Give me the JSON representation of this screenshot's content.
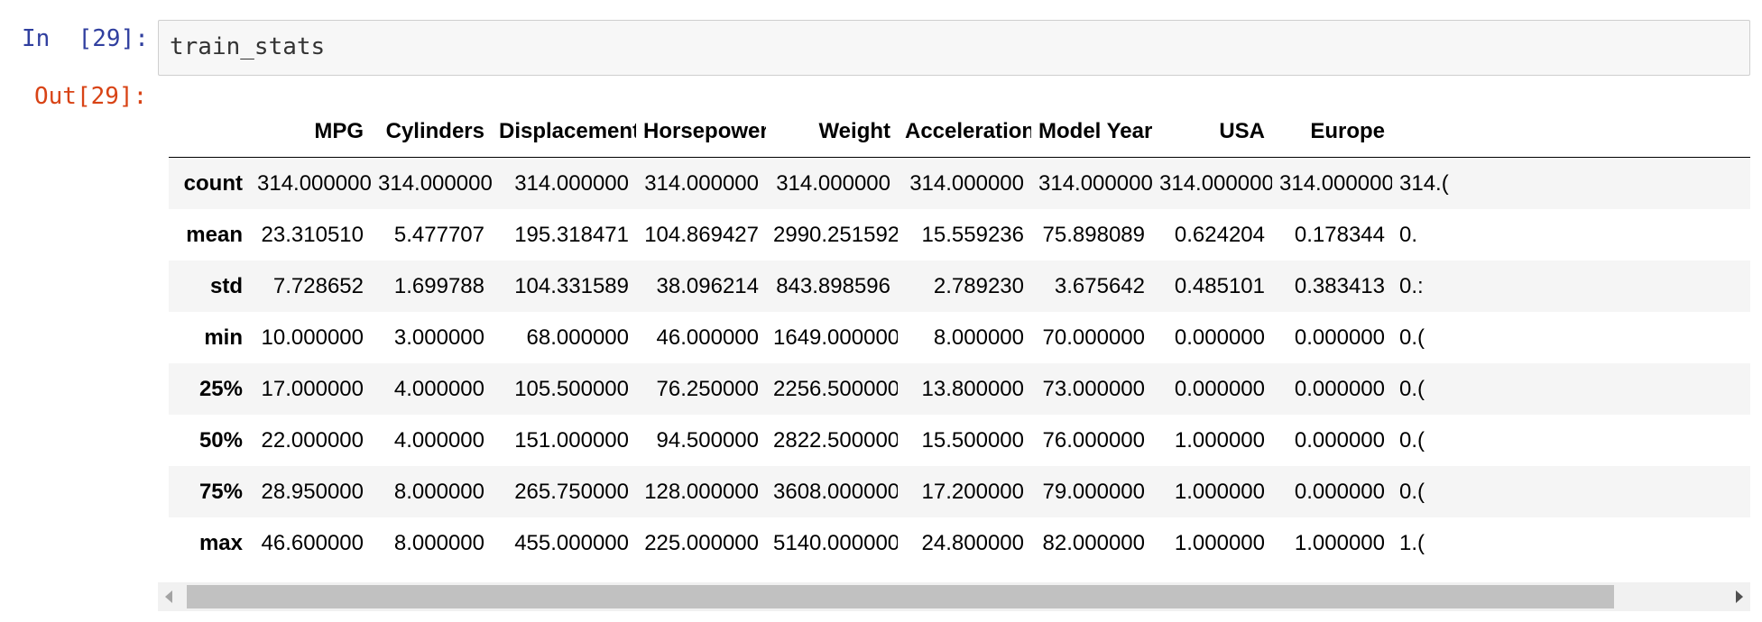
{
  "input_cell": {
    "prompt": "In  [29]:",
    "code": "train_stats"
  },
  "output_cell": {
    "prompt": "Out[29]:"
  },
  "table": {
    "index_header": "",
    "columns": [
      "MPG",
      "Cylinders",
      "Displacement",
      "Horsepower",
      "Weight",
      "Acceleration",
      "Model Year",
      "USA",
      "Europe",
      ""
    ],
    "rows": [
      {
        "label": "count",
        "values": [
          "314.000000",
          "314.000000",
          "314.000000",
          "314.000000",
          "314.000000",
          "314.000000",
          "314.000000",
          "314.000000",
          "314.000000",
          "314.("
        ]
      },
      {
        "label": "mean",
        "values": [
          "23.310510",
          "5.477707",
          "195.318471",
          "104.869427",
          "2990.251592",
          "15.559236",
          "75.898089",
          "0.624204",
          "0.178344",
          "0."
        ]
      },
      {
        "label": "std",
        "values": [
          "7.728652",
          "1.699788",
          "104.331589",
          "38.096214",
          "843.898596",
          "2.789230",
          "3.675642",
          "0.485101",
          "0.383413",
          "0.:"
        ]
      },
      {
        "label": "min",
        "values": [
          "10.000000",
          "3.000000",
          "68.000000",
          "46.000000",
          "1649.000000",
          "8.000000",
          "70.000000",
          "0.000000",
          "0.000000",
          "0.("
        ]
      },
      {
        "label": "25%",
        "values": [
          "17.000000",
          "4.000000",
          "105.500000",
          "76.250000",
          "2256.500000",
          "13.800000",
          "73.000000",
          "0.000000",
          "0.000000",
          "0.("
        ]
      },
      {
        "label": "50%",
        "values": [
          "22.000000",
          "4.000000",
          "151.000000",
          "94.500000",
          "2822.500000",
          "15.500000",
          "76.000000",
          "1.000000",
          "0.000000",
          "0.("
        ]
      },
      {
        "label": "75%",
        "values": [
          "28.950000",
          "8.000000",
          "265.750000",
          "128.000000",
          "3608.000000",
          "17.200000",
          "79.000000",
          "1.000000",
          "0.000000",
          "0.("
        ]
      },
      {
        "label": "max",
        "values": [
          "46.600000",
          "8.000000",
          "455.000000",
          "225.000000",
          "5140.000000",
          "24.800000",
          "82.000000",
          "1.000000",
          "1.000000",
          "1.("
        ]
      }
    ]
  },
  "scrollbar": {
    "left_icon": "arrow-left-icon",
    "right_icon": "arrow-right-icon",
    "visible_fraction": 0.93
  }
}
